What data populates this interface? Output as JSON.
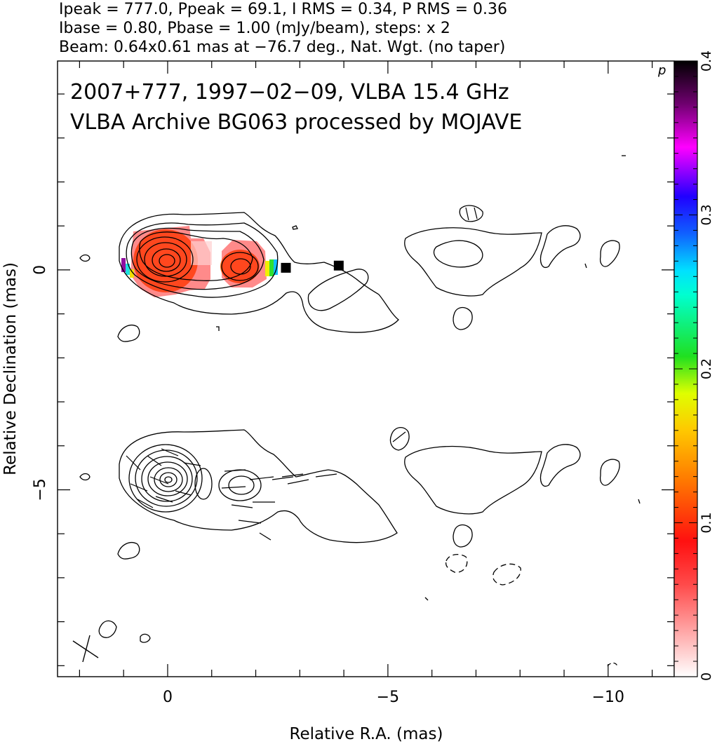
{
  "header": {
    "line1": "Ipeak = 777.0, Ppeak = 69.1, I RMS = 0.34, P RMS = 0.36",
    "line2": "Ibase = 0.80, Pbase = 1.00 (mJy/beam), steps: x 2",
    "line3": "Beam: 0.64x0.61 mas at −76.7 deg., Nat. Wgt. (no taper)"
  },
  "annotations": {
    "source_line": "2007+777, 1997−02−09, VLBA 15.4 GHz",
    "archive_line": "VLBA Archive BG063 processed by MOJAVE",
    "corner_mark": "p"
  },
  "chart_data": {
    "type": "heatmap",
    "xlabel": "Relative R.A. (mas)",
    "ylabel": "Relative Declination (mas)",
    "xlim": [
      2.5,
      -11.5
    ],
    "ylim": [
      -9.25,
      4.75
    ],
    "x_ticks": [
      0,
      -5,
      -10
    ],
    "x_tick_labels": [
      "0",
      "−5",
      "−10"
    ],
    "y_ticks": [
      0,
      -5
    ],
    "y_tick_labels": [
      "0",
      "−5"
    ],
    "grid": false,
    "contour_sets": [
      {
        "name": "total intensity",
        "ra_center": 0.0,
        "dec_center": 0.0
      },
      {
        "name": "polarization vectors",
        "ra_center": 0.0,
        "dec_center": -5.0
      }
    ],
    "polarization_pixels": [
      {
        "ra": 0.0,
        "dec": 0.0,
        "fraction": 0.1
      },
      {
        "ra": -1.6,
        "dec": 0.0,
        "fraction": 0.1
      },
      {
        "ra": -2.7,
        "dec": 0.0,
        "fraction": 0.4
      },
      {
        "ra": -3.9,
        "dec": 0.05,
        "fraction": 0.4
      }
    ],
    "colorbar": {
      "min": 0,
      "max": 0.4,
      "ticks": [
        0,
        0.1,
        0.2,
        0.3,
        0.4
      ],
      "tick_labels": [
        "0",
        "0.1",
        "0.2",
        "0.3",
        "0.4"
      ],
      "colors": [
        "#ffffff",
        "#ff2020",
        "#ff8000",
        "#ffff00",
        "#00ff00",
        "#00ffff",
        "#0000ff",
        "#ff00ff",
        "#000000"
      ]
    }
  }
}
